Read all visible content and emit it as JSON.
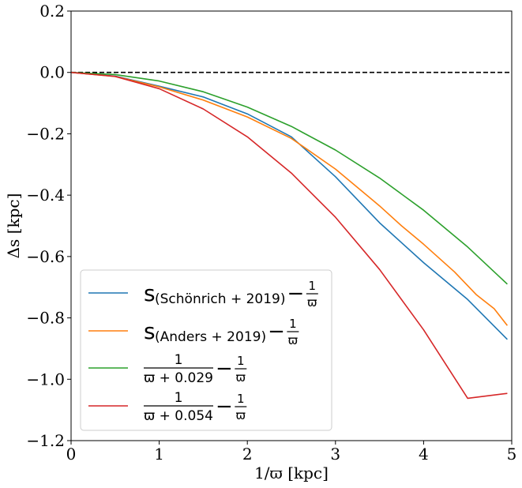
{
  "chart_data": {
    "type": "line",
    "title": "",
    "xlabel": "1/ϖ [kpc]",
    "ylabel": "Δs [kpc]",
    "xlim": [
      0,
      5
    ],
    "ylim": [
      -1.2,
      0.2
    ],
    "xticks": [
      0,
      1,
      2,
      3,
      4,
      5
    ],
    "xtick_labels": [
      "0",
      "1",
      "2",
      "3",
      "4",
      "5"
    ],
    "yticks": [
      0.2,
      0.0,
      -0.2,
      -0.4,
      -0.6,
      -0.8,
      -1.0,
      -1.2
    ],
    "ytick_labels": [
      "0.2",
      "0.0",
      "−0.2",
      "−0.4",
      "−0.6",
      "−0.8",
      "−1.0",
      "−1.2"
    ],
    "reference_line": {
      "y": 0,
      "style": "dashed",
      "color": "#000000"
    },
    "legend_position": "lower-left",
    "series": [
      {
        "name": "s(Schönrich + 2019) − 1/ϖ",
        "legend": {
          "main": "s",
          "sub": "(Schönrich + 2019)",
          "op": " − ",
          "num": "1",
          "den": "ϖ"
        },
        "color": "#1f77b4",
        "x": [
          0,
          0.5,
          1,
          1.5,
          2,
          2.5,
          3,
          3.5,
          4,
          4.5,
          4.95
        ],
        "y": [
          0,
          -0.012,
          -0.045,
          -0.08,
          -0.135,
          -0.21,
          -0.34,
          -0.49,
          -0.62,
          -0.74,
          -0.87
        ]
      },
      {
        "name": "s(Anders + 2019) − 1/ϖ",
        "legend": {
          "main": "s",
          "sub": "(Anders + 2019)",
          "op": " − ",
          "num": "1",
          "den": "ϖ"
        },
        "color": "#ff7f0e",
        "x": [
          0,
          0.5,
          1,
          1.5,
          2,
          2.5,
          3,
          3.5,
          3.75,
          4,
          4.35,
          4.6,
          4.8,
          4.95
        ],
        "y": [
          0,
          -0.013,
          -0.047,
          -0.09,
          -0.145,
          -0.215,
          -0.315,
          -0.435,
          -0.5,
          -0.56,
          -0.65,
          -0.725,
          -0.77,
          -0.825
        ]
      },
      {
        "name": "1/(ϖ + 0.029) − 1/ϖ",
        "legend": {
          "num": "1",
          "den": "ϖ + 0.029",
          "op": " − ",
          "num2": "1",
          "den2": "ϖ"
        },
        "color": "#2ca02c",
        "x": [
          0,
          0.5,
          1,
          1.5,
          2,
          2.5,
          3,
          3.5,
          4,
          4.5,
          4.95
        ],
        "y": [
          0,
          -0.007,
          -0.028,
          -0.063,
          -0.113,
          -0.176,
          -0.253,
          -0.344,
          -0.449,
          -0.569,
          -0.69
        ]
      },
      {
        "name": "1/(ϖ + 0.054) − 1/ϖ",
        "legend": {
          "num": "1",
          "den": "ϖ + 0.054",
          "op": " − ",
          "num2": "1",
          "den2": "ϖ"
        },
        "color": "#d62728",
        "x": [
          0,
          0.5,
          1,
          1.5,
          2,
          2.5,
          3,
          3.5,
          4,
          4.5,
          4.95
        ],
        "y": [
          0,
          -0.013,
          -0.053,
          -0.119,
          -0.21,
          -0.328,
          -0.472,
          -0.642,
          -0.839,
          -1.062,
          -1.046
        ]
      }
    ]
  }
}
